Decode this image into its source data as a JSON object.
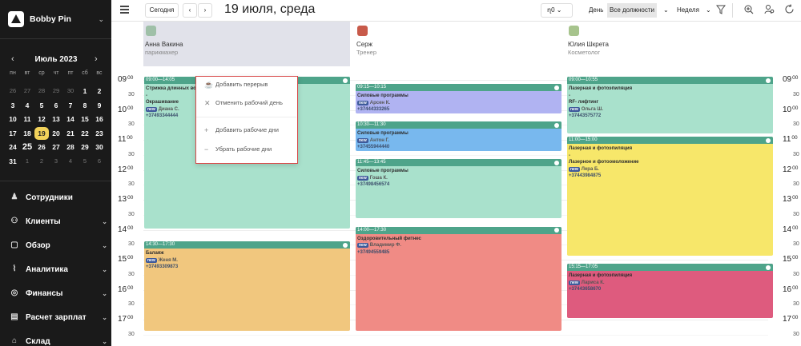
{
  "brand": {
    "name": "Bobby Pin"
  },
  "calendar": {
    "month_label": "Июль 2023",
    "prev": "‹",
    "next": "›",
    "weekdays": [
      "пн",
      "вт",
      "ср",
      "чт",
      "пт",
      "сб",
      "вс"
    ],
    "weeks": [
      [
        {
          "d": "26",
          "o": true
        },
        {
          "d": "27",
          "o": true
        },
        {
          "d": "28",
          "o": true
        },
        {
          "d": "29",
          "o": true
        },
        {
          "d": "30",
          "o": true
        },
        {
          "d": "1"
        },
        {
          "d": "2"
        }
      ],
      [
        {
          "d": "3"
        },
        {
          "d": "4"
        },
        {
          "d": "5"
        },
        {
          "d": "6"
        },
        {
          "d": "7"
        },
        {
          "d": "8"
        },
        {
          "d": "9"
        }
      ],
      [
        {
          "d": "10"
        },
        {
          "d": "11"
        },
        {
          "d": "12"
        },
        {
          "d": "13"
        },
        {
          "d": "14"
        },
        {
          "d": "15"
        },
        {
          "d": "16"
        }
      ],
      [
        {
          "d": "17"
        },
        {
          "d": "18"
        },
        {
          "d": "19",
          "t": true
        },
        {
          "d": "20"
        },
        {
          "d": "21"
        },
        {
          "d": "22"
        },
        {
          "d": "23"
        }
      ],
      [
        {
          "d": "24"
        },
        {
          "d": "25",
          "b": true
        },
        {
          "d": "26"
        },
        {
          "d": "27"
        },
        {
          "d": "28"
        },
        {
          "d": "29"
        },
        {
          "d": "30"
        }
      ],
      [
        {
          "d": "31"
        },
        {
          "d": "1",
          "o": true
        },
        {
          "d": "2",
          "o": true
        },
        {
          "d": "3",
          "o": true
        },
        {
          "d": "4",
          "o": true
        },
        {
          "d": "5",
          "o": true
        },
        {
          "d": "6",
          "o": true
        }
      ]
    ]
  },
  "nav": [
    {
      "label": "Сотрудники",
      "icon": "user-icon",
      "chev": false
    },
    {
      "label": "Клиенты",
      "icon": "users-icon",
      "chev": true
    },
    {
      "label": "Обзор",
      "icon": "overview-icon",
      "chev": true
    },
    {
      "label": "Аналитика",
      "icon": "chart-icon",
      "chev": true
    },
    {
      "label": "Финансы",
      "icon": "coins-icon",
      "chev": true
    },
    {
      "label": "Расчет зарплат",
      "icon": "payroll-icon",
      "chev": true
    },
    {
      "label": "Склад",
      "icon": "warehouse-icon",
      "chev": true
    }
  ],
  "header": {
    "today": "Сегодня",
    "prev": "‹",
    "next": "›",
    "date_title": "19 июля, среда",
    "location": "ղ0",
    "day": "День",
    "positions": "Все должности",
    "week": "Неделя"
  },
  "staff": [
    {
      "name": "Анна Вакина",
      "role": "парикмахер",
      "avatar_color": "#9fc0a8"
    },
    {
      "name": "Серж",
      "role": "Тренер",
      "avatar_color": "#c85a4a"
    },
    {
      "name": "Юлия Шкрета",
      "role": "Косметолог",
      "avatar_color": "#a7c48d"
    }
  ],
  "hours": [
    "09",
    "10",
    "11",
    "12",
    "13",
    "14",
    "15",
    "16",
    "17"
  ],
  "minutes_label": "00",
  "half_label": "30",
  "appointments": [
    {
      "col": 0,
      "start": "09:00",
      "end": "14:05",
      "time": "09:00—14:05",
      "color": "#a9e1cc",
      "lines": [
        "Стрижка длинных волос",
        "-",
        "Окрашивание"
      ],
      "client": "Диана С.",
      "phone": "+37493344444"
    },
    {
      "col": 0,
      "start": "14:30",
      "end": "17:30",
      "time": "14:30—17:30",
      "color": "#f1c77e",
      "lines": [
        "Балаяж"
      ],
      "client": "Женя М.",
      "phone": "+37493309873"
    },
    {
      "col": 1,
      "start": "09:15",
      "end": "10:15",
      "time": "09:15—10:15",
      "color": "#b0b3f2",
      "lines": [
        "Силовые программы"
      ],
      "client": "Арсен К.",
      "phone": "+37444333265"
    },
    {
      "col": 1,
      "start": "10:30",
      "end": "11:30",
      "time": "10:30—11:30",
      "color": "#78b8ee",
      "lines": [
        "Силовые программы"
      ],
      "client": "Антон Г.",
      "phone": "+37455944440"
    },
    {
      "col": 1,
      "start": "11:45",
      "end": "13:45",
      "time": "11:45—13:45",
      "color": "#a9e1cc",
      "lines": [
        "Силовые программы"
      ],
      "client": "Гоша К.",
      "phone": "+37498456574"
    },
    {
      "col": 1,
      "start": "14:00",
      "end": "17:30",
      "time": "14:00—17:30",
      "color": "#f08b85",
      "lines": [
        "Оздоровительный фитнес"
      ],
      "client": "Владимир Ф.",
      "phone": "+37494559485"
    },
    {
      "col": 2,
      "start": "09:00",
      "end": "10:55",
      "time": "09:00—10:55",
      "color": "#a9e1cc",
      "lines": [
        "Лазерная и фотоэпиляция",
        "-",
        "RF- лифтинг"
      ],
      "client": "Ольга Ш.",
      "phone": "+37443575772"
    },
    {
      "col": 2,
      "start": "11:00",
      "end": "15:00",
      "time": "11:00—15:00",
      "color": "#f7e76a",
      "lines": [
        "Лазерная и фотоэпиляция",
        "-",
        "Лазерное и фотоомоложение"
      ],
      "client": "Лера Б.",
      "phone": "+37443984875"
    },
    {
      "col": 2,
      "start": "15:15",
      "end": "17:05",
      "time": "15:15—17:05",
      "color": "#de5b7e",
      "lines": [
        "Лазерная и фотоэпиляция"
      ],
      "client": "Лариса К.",
      "phone": "+37443658670"
    }
  ],
  "new_tag": "new",
  "menu": {
    "add_break": "Добавить перерыв",
    "cancel_day": "Отменить рабочий день",
    "add_days": "Добавить рабочие дни",
    "remove_days": "Убрать рабочие дни"
  }
}
